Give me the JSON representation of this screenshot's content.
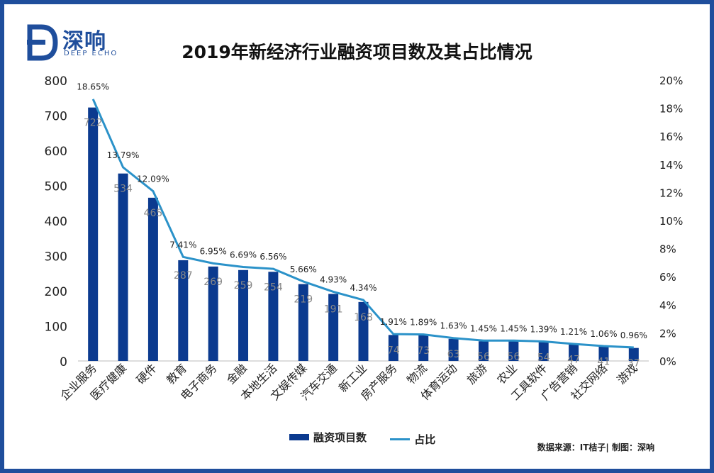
{
  "brand": {
    "name": "深响",
    "sub": "DEEP ECHO"
  },
  "source": "数据来源：IT桔子| 制图：深响",
  "colors": {
    "bar": "#0b3a8f",
    "line": "#2b92c9",
    "frame": "#1f4e9c"
  },
  "chart_data": {
    "type": "bar",
    "title": "2019年新经济行业融资项目数及其占比情况",
    "categories": [
      "企业服务",
      "医疗健康",
      "硬件",
      "教育",
      "电子商务",
      "金融",
      "本地生活",
      "文娱传媒",
      "汽车交通",
      "新工业",
      "房产服务",
      "物流",
      "体育运动",
      "旅游",
      "农业",
      "工具软件",
      "广告营销",
      "社交网络",
      "游戏"
    ],
    "series": [
      {
        "name": "融资项目数",
        "type": "bar",
        "axis": "left",
        "values": [
          722,
          534,
          465,
          287,
          269,
          259,
          254,
          219,
          191,
          168,
          74,
          73,
          63,
          56,
          56,
          54,
          47,
          41,
          37
        ],
        "labels": [
          "722",
          "534",
          "465",
          "287",
          "269",
          "259",
          "254",
          "219",
          "191",
          "168",
          "74",
          "73",
          "63",
          "56",
          "56",
          "54",
          "47",
          "41",
          "37"
        ]
      },
      {
        "name": "占比",
        "type": "line",
        "axis": "right",
        "values": [
          18.65,
          13.79,
          12.09,
          7.41,
          6.95,
          6.69,
          6.56,
          5.66,
          4.93,
          4.34,
          1.91,
          1.89,
          1.63,
          1.45,
          1.45,
          1.39,
          1.21,
          1.06,
          0.96
        ],
        "labels": [
          "18.65%",
          "13.79%",
          "12.09%",
          "7.41%",
          "6.95%",
          "6.69%",
          "6.56%",
          "5.66%",
          "4.93%",
          "4.34%",
          "1.91%",
          "1.89%",
          "1.63%",
          "1.45%",
          "1.45%",
          "1.39%",
          "1.21%",
          "1.06%",
          "0.96%"
        ]
      }
    ],
    "ylim": [
      0,
      800
    ],
    "yticks": [
      0,
      100,
      200,
      300,
      400,
      500,
      600,
      700,
      800
    ],
    "y2lim": [
      0,
      20
    ],
    "y2ticks": [
      "0%",
      "2%",
      "4%",
      "6%",
      "8%",
      "10%",
      "12%",
      "14%",
      "16%",
      "18%",
      "20%"
    ],
    "legend": [
      "融资项目数",
      "占比"
    ]
  }
}
